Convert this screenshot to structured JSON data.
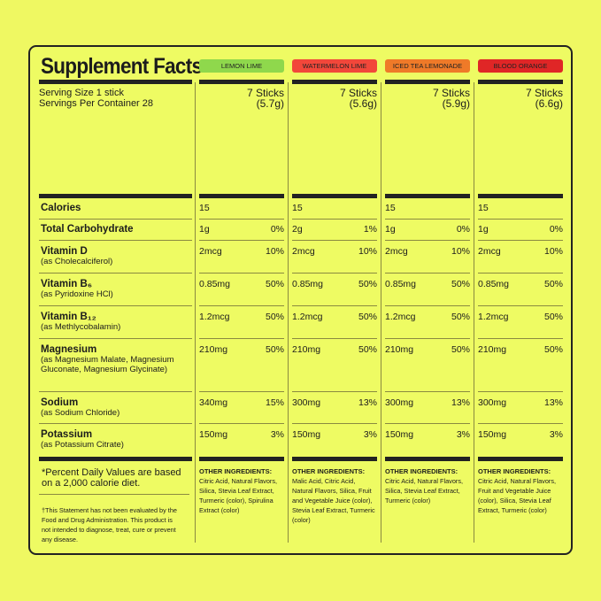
{
  "title": "Supplement Facts",
  "serving": {
    "size": "Serving Size 1 stick",
    "per_container": "Servings Per Container 28"
  },
  "flavors": [
    {
      "name": "LEMON LIME",
      "color": "#8fd84c",
      "amount": "7 Sticks",
      "weight": "(5.7g)",
      "other_label": "OTHER INGREDIENTS:",
      "other": "Citric Acid, Natural Flavors, Silica, Stevia Leaf Extract, Turmeric (color), Spirulina Extract (color)"
    },
    {
      "name": "WATERMELON LIME",
      "color": "#f2473a",
      "amount": "7 Sticks",
      "weight": "(5.6g)",
      "other_label": "OTHER INGREDIENTS:",
      "other": "Malic Acid, Citric Acid, Natural Flavors, Silica, Fruit and Vegetable Juice (color), Stevia Leaf Extract, Turmeric (color)"
    },
    {
      "name": "ICED TEA LEMONADE",
      "color": "#ef7a28",
      "amount": "7 Sticks",
      "weight": "(5.9g)",
      "other_label": "OTHER INGREDIENTS:",
      "other": "Citric Acid, Natural Flavors, Silica, Stevia Leaf Extract, Turmeric (color)"
    },
    {
      "name": "BLOOD ORANGE",
      "color": "#e02626",
      "amount": "7 Sticks",
      "weight": "(6.6g)",
      "other_label": "OTHER INGREDIENTS:",
      "other": "Citric Acid, Natural Flavors, Fruit and Vegetable Juice (color), Silica, Stevia Leaf Extract, Turmeric (color)"
    }
  ],
  "nutrients": [
    {
      "name": "Calories",
      "sub": "",
      "values": [
        [
          "15",
          ""
        ],
        [
          "15",
          ""
        ],
        [
          "15",
          ""
        ],
        [
          "15",
          ""
        ]
      ]
    },
    {
      "name": "Total Carbohydrate",
      "sub": "",
      "values": [
        [
          "1g",
          "0%"
        ],
        [
          "2g",
          "1%"
        ],
        [
          "1g",
          "0%"
        ],
        [
          "1g",
          "0%"
        ]
      ]
    },
    {
      "name": "Vitamin D",
      "sub": "(as Cholecalciferol)",
      "values": [
        [
          "2mcg",
          "10%"
        ],
        [
          "2mcg",
          "10%"
        ],
        [
          "2mcg",
          "10%"
        ],
        [
          "2mcg",
          "10%"
        ]
      ]
    },
    {
      "name": "Vitamin B₆",
      "sub": "(as Pyridoxine HCl)",
      "values": [
        [
          "0.85mg",
          "50%"
        ],
        [
          "0.85mg",
          "50%"
        ],
        [
          "0.85mg",
          "50%"
        ],
        [
          "0.85mg",
          "50%"
        ]
      ]
    },
    {
      "name": "Vitamin B₁₂",
      "sub": "(as Methlycobalamin)",
      "values": [
        [
          "1.2mcg",
          "50%"
        ],
        [
          "1.2mcg",
          "50%"
        ],
        [
          "1.2mcg",
          "50%"
        ],
        [
          "1.2mcg",
          "50%"
        ]
      ]
    },
    {
      "name": "Magnesium",
      "sub": "(as Magnesium Malate, Magnesium Gluconate, Magnesium Glycinate)",
      "values": [
        [
          "210mg",
          "50%"
        ],
        [
          "210mg",
          "50%"
        ],
        [
          "210mg",
          "50%"
        ],
        [
          "210mg",
          "50%"
        ]
      ]
    },
    {
      "name": "Sodium",
      "sub": "(as Sodium Chloride)",
      "values": [
        [
          "340mg",
          "15%"
        ],
        [
          "300mg",
          "13%"
        ],
        [
          "300mg",
          "13%"
        ],
        [
          "300mg",
          "13%"
        ]
      ]
    },
    {
      "name": "Potassium",
      "sub": "(as Potassium Citrate)",
      "values": [
        [
          "150mg",
          "3%"
        ],
        [
          "150mg",
          "3%"
        ],
        [
          "150mg",
          "3%"
        ],
        [
          "150mg",
          "3%"
        ]
      ]
    }
  ],
  "footnotes": {
    "daily_values": "*Percent Daily Values are based on a 2,000 calorie diet.",
    "fda": "†This Statement has not been evaluated by the Food and Drug Administration. This product is not intended to diagnose, treat, cure or prevent any disease."
  }
}
